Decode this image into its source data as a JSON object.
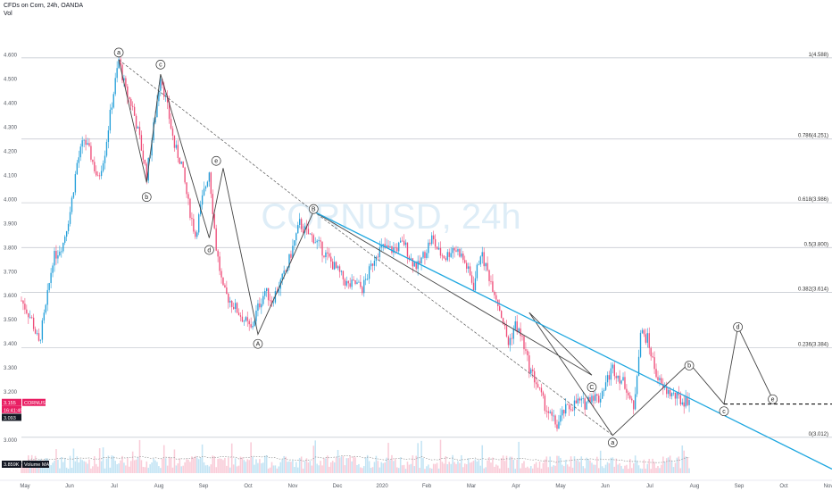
{
  "header": {
    "title": "CFDs on Corn, 24h, OANDA",
    "subtitle": "Vol"
  },
  "watermark": "CORNUSD, 24h",
  "chart_data": {
    "type": "candlestick",
    "y_ticks": [
      "4.600",
      "4.500",
      "4.400",
      "4.300",
      "4.200",
      "4.100",
      "4.000",
      "3.900",
      "3.800",
      "3.700",
      "3.600",
      "3.500",
      "3.400",
      "3.300",
      "3.200",
      "3.000"
    ],
    "ylim": [
      2.9,
      4.68
    ],
    "x_labels": [
      "May",
      "Jun",
      "Jul",
      "Aug",
      "Sep",
      "Oct",
      "Nov",
      "Dec",
      "2020",
      "Feb",
      "Mar",
      "Apr",
      "May",
      "Jun",
      "Jul",
      "Aug",
      "Sep",
      "Oct",
      "Nov"
    ],
    "price_path": [
      [
        0,
        3.58
      ],
      [
        6,
        3.5
      ],
      [
        10,
        3.4
      ],
      [
        14,
        3.55
      ],
      [
        18,
        3.75
      ],
      [
        24,
        3.82
      ],
      [
        28,
        3.95
      ],
      [
        32,
        4.15
      ],
      [
        36,
        4.25
      ],
      [
        40,
        4.18
      ],
      [
        44,
        4.08
      ],
      [
        48,
        4.2
      ],
      [
        52,
        4.4
      ],
      [
        56,
        4.58
      ],
      [
        60,
        4.45
      ],
      [
        64,
        4.38
      ],
      [
        68,
        4.25
      ],
      [
        72,
        4.1
      ],
      [
        76,
        4.3
      ],
      [
        80,
        4.52
      ],
      [
        84,
        4.38
      ],
      [
        88,
        4.22
      ],
      [
        92,
        4.15
      ],
      [
        96,
        3.98
      ],
      [
        100,
        3.85
      ],
      [
        104,
        4.0
      ],
      [
        108,
        4.12
      ],
      [
        112,
        3.8
      ],
      [
        116,
        3.62
      ],
      [
        120,
        3.58
      ],
      [
        124,
        3.54
      ],
      [
        128,
        3.5
      ],
      [
        132,
        3.46
      ],
      [
        136,
        3.55
      ],
      [
        140,
        3.62
      ],
      [
        144,
        3.58
      ],
      [
        148,
        3.64
      ],
      [
        152,
        3.7
      ],
      [
        156,
        3.8
      ],
      [
        160,
        3.9
      ],
      [
        164,
        3.86
      ],
      [
        168,
        3.84
      ],
      [
        172,
        3.8
      ],
      [
        176,
        3.76
      ],
      [
        180,
        3.72
      ],
      [
        184,
        3.68
      ],
      [
        188,
        3.64
      ],
      [
        192,
        3.65
      ],
      [
        196,
        3.63
      ],
      [
        200,
        3.7
      ],
      [
        204,
        3.78
      ],
      [
        208,
        3.8
      ],
      [
        212,
        3.79
      ],
      [
        216,
        3.8
      ],
      [
        220,
        3.82
      ],
      [
        224,
        3.75
      ],
      [
        228,
        3.72
      ],
      [
        232,
        3.78
      ],
      [
        236,
        3.84
      ],
      [
        240,
        3.78
      ],
      [
        244,
        3.76
      ],
      [
        248,
        3.8
      ],
      [
        252,
        3.78
      ],
      [
        256,
        3.72
      ],
      [
        260,
        3.64
      ],
      [
        264,
        3.78
      ],
      [
        268,
        3.7
      ],
      [
        272,
        3.62
      ],
      [
        276,
        3.52
      ],
      [
        280,
        3.4
      ],
      [
        284,
        3.48
      ],
      [
        288,
        3.42
      ],
      [
        292,
        3.3
      ],
      [
        296,
        3.24
      ],
      [
        300,
        3.16
      ],
      [
        304,
        3.1
      ],
      [
        308,
        3.06
      ],
      [
        312,
        3.12
      ],
      [
        316,
        3.14
      ],
      [
        320,
        3.16
      ],
      [
        324,
        3.15
      ],
      [
        328,
        3.19
      ],
      [
        332,
        3.17
      ],
      [
        336,
        3.24
      ],
      [
        340,
        3.3
      ],
      [
        344,
        3.26
      ],
      [
        348,
        3.22
      ],
      [
        352,
        3.12
      ],
      [
        356,
        3.45
      ],
      [
        360,
        3.42
      ],
      [
        364,
        3.3
      ],
      [
        368,
        3.22
      ],
      [
        372,
        3.2
      ],
      [
        376,
        3.18
      ],
      [
        380,
        3.16
      ],
      [
        384,
        3.17
      ]
    ],
    "candle_count": 385,
    "x_index_start_label": "May",
    "volume_ylim": [
      0,
      1000
    ],
    "fib_levels": [
      {
        "label": "1(4.588)",
        "value": 4.588
      },
      {
        "label": "0.786(4.251)",
        "value": 4.251
      },
      {
        "label": "0.618(3.986)",
        "value": 3.986
      },
      {
        "label": "0.5(3.800)",
        "value": 3.8
      },
      {
        "label": "0.382(3.614)",
        "value": 3.614
      },
      {
        "label": "0.236(3.384)",
        "value": 3.384
      },
      {
        "label": "0(3.012)",
        "value": 3.012
      }
    ],
    "wave_labels": [
      {
        "t": "a",
        "i": 56,
        "v": 4.61
      },
      {
        "t": "b",
        "i": 72,
        "v": 4.01
      },
      {
        "t": "c",
        "i": 80,
        "v": 4.56
      },
      {
        "t": "d",
        "i": 108,
        "v": 3.79
      },
      {
        "t": "e",
        "i": 112,
        "v": 4.16
      },
      {
        "t": "A",
        "i": 136,
        "v": 3.4
      },
      {
        "t": "B",
        "i": 168,
        "v": 3.96
      },
      {
        "t": "C",
        "i": 328,
        "v": 3.22
      },
      {
        "t": "a",
        "i": 340,
        "v": 2.99
      },
      {
        "t": "b",
        "i": 384,
        "v": 3.31
      },
      {
        "t": "c",
        "i": 404,
        "v": 3.12
      },
      {
        "t": "d",
        "i": 412,
        "v": 3.47
      },
      {
        "t": "e",
        "i": 432,
        "v": 3.17
      }
    ],
    "price_labels": [
      {
        "text": "3.155",
        "color": "#e91e63",
        "v": 3.155
      },
      {
        "text": "16:41:49",
        "color": "#e91e63",
        "v": 3.125
      },
      {
        "text": "3.093",
        "color": "#131722",
        "v": 3.093
      }
    ],
    "volume_legend": {
      "value": "3.859K",
      "label": "Volume MA"
    },
    "symbol_label": "CORNUSD"
  },
  "colors": {
    "up": "#26a0da",
    "down": "#ef4f7a",
    "trend": "#1ea7e0",
    "wave": "#444444",
    "fib": "#c8ccd3"
  }
}
